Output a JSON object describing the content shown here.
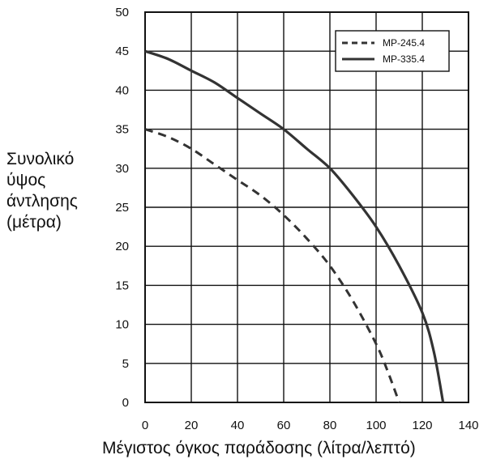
{
  "chart_data": {
    "type": "line",
    "xlabel": "Μέγιστος όγκος παράδοσης (λίτρα/λεπτό)",
    "ylabel_lines": [
      "Συνολικό",
      "ύψος",
      "άντλησης",
      "(μέτρα)"
    ],
    "xlim": [
      0,
      140
    ],
    "ylim": [
      0,
      50
    ],
    "x_ticks": [
      0,
      20,
      40,
      60,
      80,
      100,
      120,
      140
    ],
    "y_ticks": [
      0,
      5,
      10,
      15,
      20,
      25,
      30,
      35,
      40,
      45,
      50
    ],
    "grid": true,
    "legend_position": "top-right",
    "series": [
      {
        "name": "MP-245.4",
        "style": "dashed",
        "color": "#333333",
        "x": [
          0,
          10,
          20,
          30,
          40,
          50,
          60,
          70,
          80,
          90,
          100,
          105,
          110
        ],
        "y": [
          35,
          34,
          32.5,
          30.5,
          28.5,
          26.5,
          24,
          21,
          17.5,
          13,
          7.5,
          4,
          0
        ]
      },
      {
        "name": "MP-335.4",
        "style": "solid",
        "color": "#333333",
        "x": [
          0,
          10,
          20,
          30,
          40,
          50,
          60,
          70,
          80,
          90,
          100,
          110,
          120,
          125,
          129
        ],
        "y": [
          45,
          44,
          42.5,
          41,
          39,
          37,
          35,
          32.5,
          30,
          26.5,
          22.5,
          17.5,
          11.5,
          6.5,
          0
        ]
      }
    ]
  }
}
